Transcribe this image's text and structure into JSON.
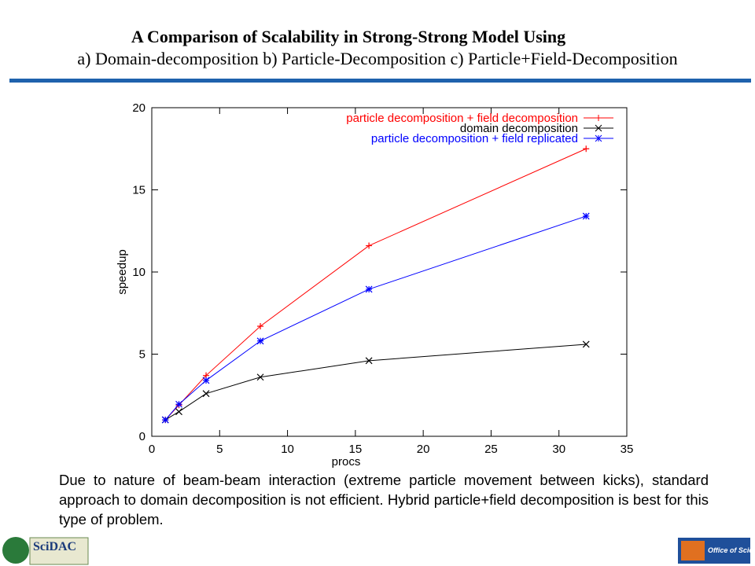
{
  "slide": {
    "title_line1": "A Comparison of Scalability in Strong-Strong Model Using",
    "title_line2": "a) Domain-decomposition b) Particle-Decomposition c) Particle+Field-Decomposition",
    "caption": "Due to nature of beam-beam interaction (extreme particle movement between kicks), standard approach to domain decomposition is not efficient. Hybrid particle+field decomposition is best for this type of problem.",
    "logo_left": "SciDAC",
    "logo_right": "Office of Science"
  },
  "chart_data": {
    "type": "line",
    "xlabel": "procs",
    "ylabel": "speedup",
    "x": [
      1,
      2,
      4,
      8,
      16,
      32
    ],
    "series": [
      {
        "name": "particle decomposition + field decomposition",
        "color": "#ff0000",
        "marker": "+",
        "values": [
          1,
          1.9,
          3.7,
          6.7,
          11.6,
          17.5
        ]
      },
      {
        "name": "domain decomposition",
        "color": "#000000",
        "marker": "x",
        "values": [
          1,
          1.5,
          2.6,
          3.6,
          4.6,
          5.6
        ]
      },
      {
        "name": "particle decomposition + field replicated",
        "color": "#0000ff",
        "marker": "*",
        "values": [
          1,
          1.95,
          3.4,
          5.8,
          8.95,
          13.4
        ]
      }
    ],
    "xlim": [
      0,
      35
    ],
    "xticks": [
      0,
      5,
      10,
      15,
      20,
      25,
      30,
      35
    ],
    "ylim": [
      0,
      20
    ],
    "yticks": [
      0,
      5,
      10,
      15,
      20
    ],
    "legend": "upper-right",
    "grid": false
  }
}
